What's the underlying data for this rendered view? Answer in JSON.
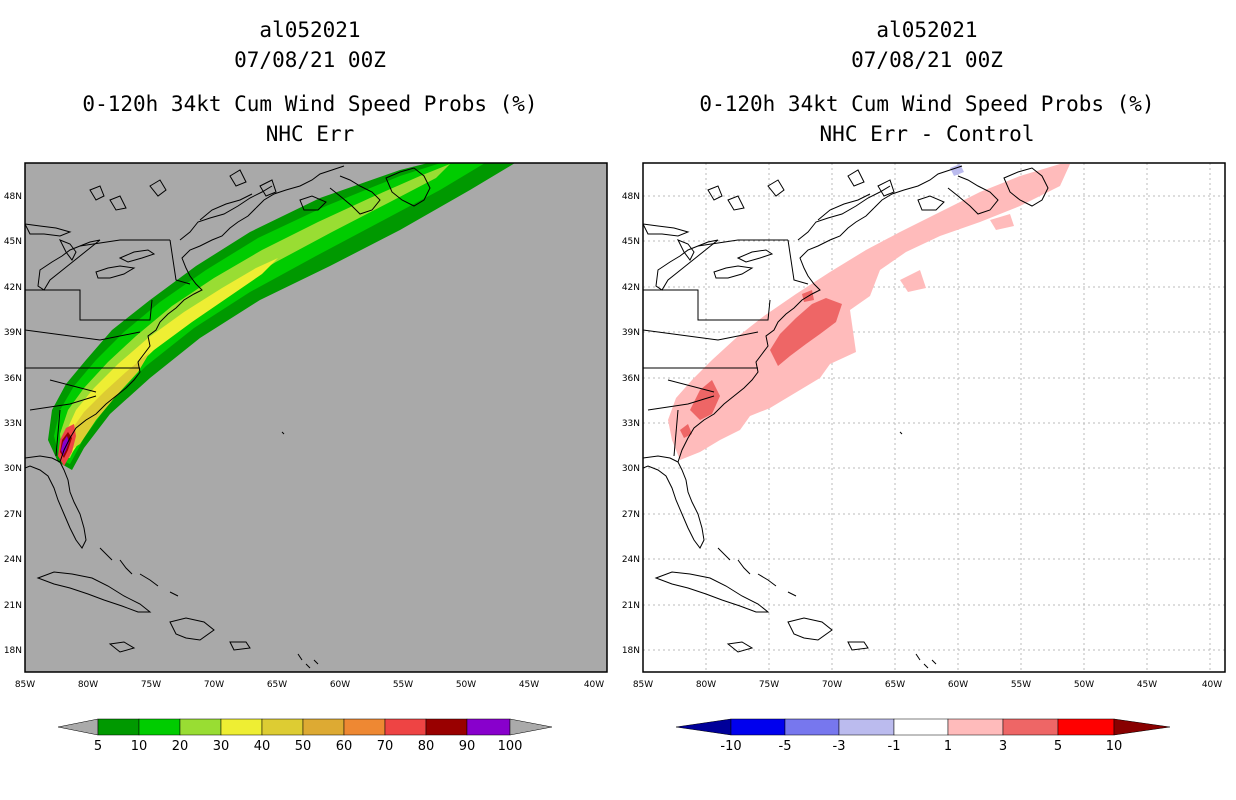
{
  "left_panel": {
    "storm_id": "al052021",
    "datetime": "07/08/21 00Z",
    "product": "0-120h 34kt Cum Wind Speed Probs (%)",
    "subtitle": "NHC Err",
    "background_color": "#a9a9a9"
  },
  "right_panel": {
    "storm_id": "al052021",
    "datetime": "07/08/21 00Z",
    "product": "0-120h 34kt Cum Wind Speed Probs (%)",
    "subtitle": "NHC Err - Control",
    "background_color": "#ffffff"
  },
  "axes": {
    "lon_labels": [
      "85W",
      "80W",
      "75W",
      "70W",
      "65W",
      "60W",
      "55W",
      "50W",
      "45W",
      "40W"
    ],
    "lat_labels": [
      "48N",
      "45N",
      "42N",
      "39N",
      "36N",
      "33N",
      "30N",
      "27N",
      "24N",
      "21N",
      "18N"
    ]
  },
  "legend_left": {
    "labels": [
      "5",
      "10",
      "20",
      "30",
      "40",
      "50",
      "60",
      "70",
      "80",
      "90",
      "100"
    ],
    "colors": [
      "#aaaaaa",
      "#009900",
      "#00cc00",
      "#99dd33",
      "#eeee33",
      "#ddcc33",
      "#ddaa33",
      "#ee8833",
      "#ee4444",
      "#990000",
      "#8800cc",
      "#aaaaaa"
    ]
  },
  "legend_right": {
    "labels": [
      "-10",
      "-5",
      "-3",
      "-1",
      "1",
      "3",
      "5",
      "10"
    ],
    "colors": [
      "#000099",
      "#0000ee",
      "#7777ee",
      "#bbbbee",
      "#ffffff",
      "#ffbbbb",
      "#ee6666",
      "#ff0000",
      "#880000"
    ]
  },
  "probability_swath": {
    "bands": [
      {
        "level": "5",
        "color": "#009900"
      },
      {
        "level": "10",
        "color": "#00cc00"
      },
      {
        "level": "20",
        "color": "#99dd33"
      },
      {
        "level": "30",
        "color": "#eeee33"
      },
      {
        "level": "40",
        "color": "#ddcc33"
      }
    ],
    "peak_colors": [
      "#ee4444",
      "#990000",
      "#8800cc"
    ]
  },
  "difference_swath": {
    "colors": {
      "light": "#ffbbbb",
      "medium": "#ee6666",
      "negative": "#bbbbee"
    }
  }
}
